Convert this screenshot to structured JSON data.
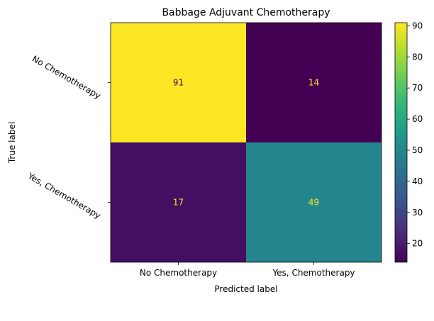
{
  "chart_data": {
    "type": "heatmap",
    "title": "Babbage Adjuvant Chemotherapy",
    "xlabel": "Predicted label",
    "ylabel": "True label",
    "x_categories": [
      "No Chemotherapy",
      "Yes, Chemotherapy"
    ],
    "y_categories": [
      "No Chemotherapy",
      "Yes, Chemotherapy"
    ],
    "values": [
      [
        91,
        14
      ],
      [
        17,
        49
      ]
    ],
    "colorbar": {
      "colormap": "viridis",
      "range": [
        14,
        91
      ],
      "ticks": [
        20,
        30,
        40,
        50,
        60,
        70,
        80,
        90
      ]
    },
    "annotation_colors": {
      "on_dark": "#fde725",
      "on_light": "#440154"
    }
  }
}
